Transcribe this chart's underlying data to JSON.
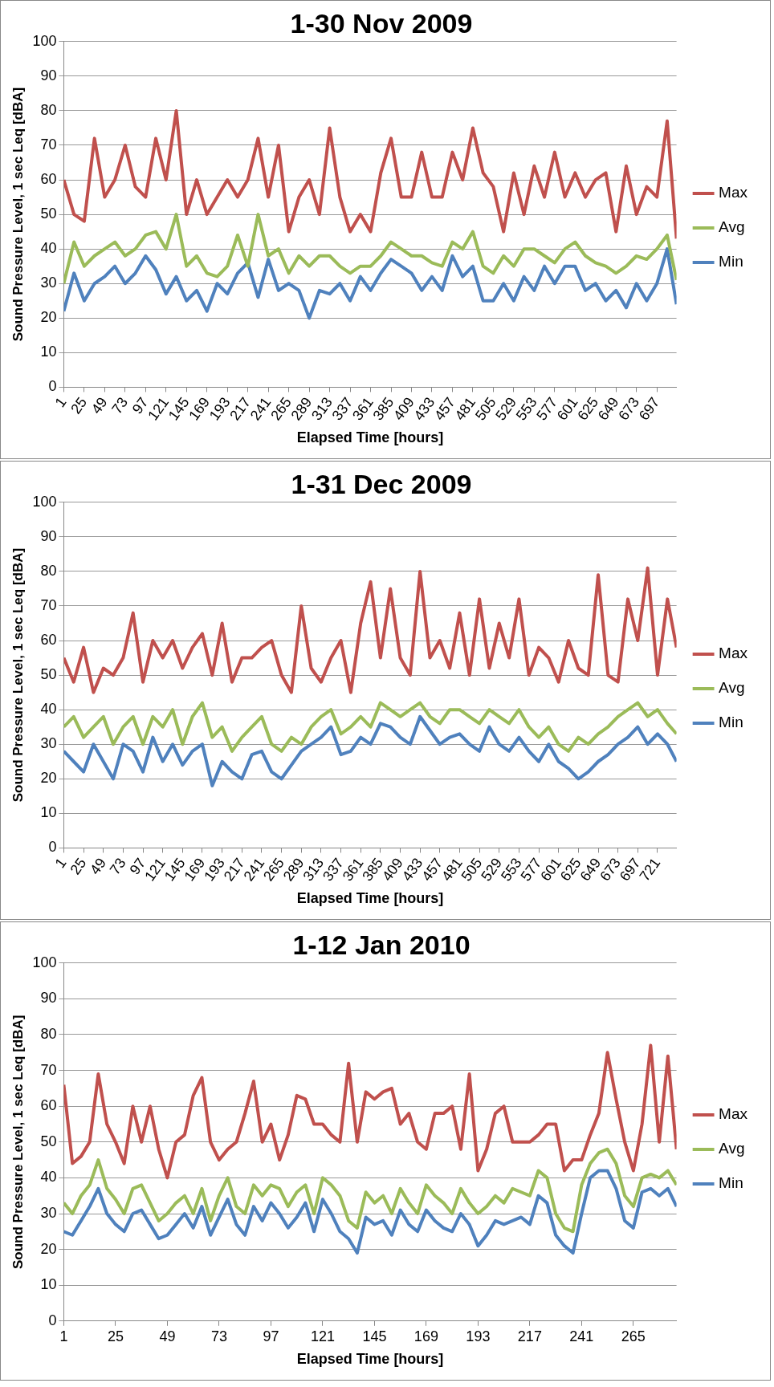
{
  "chart_data": [
    {
      "type": "line",
      "title": "1-30 Nov 2009",
      "xlabel": "Elapsed Time [hours]",
      "ylabel": "Sound Pressure Level, 1 sec Leq [dBA]",
      "xlim": [
        1,
        720
      ],
      "xticks": [
        1,
        25,
        49,
        73,
        97,
        121,
        145,
        169,
        193,
        217,
        241,
        265,
        289,
        313,
        337,
        361,
        385,
        409,
        433,
        457,
        481,
        505,
        529,
        553,
        577,
        601,
        625,
        649,
        673,
        697
      ],
      "ylim": [
        0,
        100
      ],
      "yticks": [
        0,
        10,
        20,
        30,
        40,
        50,
        60,
        70,
        80,
        90,
        100
      ],
      "grid": "y",
      "legend": "right",
      "marker": "none",
      "x": [
        1,
        13,
        25,
        37,
        49,
        61,
        73,
        85,
        97,
        109,
        121,
        133,
        145,
        157,
        169,
        181,
        193,
        205,
        217,
        229,
        241,
        253,
        265,
        277,
        289,
        301,
        313,
        325,
        337,
        349,
        361,
        373,
        385,
        397,
        409,
        421,
        433,
        445,
        457,
        469,
        481,
        493,
        505,
        517,
        529,
        541,
        553,
        565,
        577,
        589,
        601,
        613,
        625,
        637,
        649,
        661,
        673,
        685,
        697,
        709,
        720
      ],
      "series": [
        {
          "name": "Max",
          "color": "#c0504d",
          "values": [
            60,
            50,
            48,
            72,
            55,
            60,
            70,
            58,
            55,
            72,
            60,
            80,
            50,
            60,
            50,
            55,
            60,
            55,
            60,
            72,
            55,
            70,
            45,
            55,
            60,
            50,
            75,
            55,
            45,
            50,
            45,
            62,
            72,
            55,
            55,
            68,
            55,
            55,
            68,
            60,
            75,
            62,
            58,
            45,
            62,
            50,
            64,
            55,
            68,
            55,
            62,
            55,
            60,
            62,
            45,
            64,
            50,
            58,
            55,
            77,
            43
          ]
        },
        {
          "name": "Avg",
          "color": "#9bbb59",
          "values": [
            30,
            42,
            35,
            38,
            40,
            42,
            38,
            40,
            44,
            45,
            40,
            50,
            35,
            38,
            33,
            32,
            35,
            44,
            35,
            50,
            38,
            40,
            33,
            38,
            35,
            38,
            38,
            35,
            33,
            35,
            35,
            38,
            42,
            40,
            38,
            38,
            36,
            35,
            42,
            40,
            45,
            35,
            33,
            38,
            35,
            40,
            40,
            38,
            36,
            40,
            42,
            38,
            36,
            35,
            33,
            35,
            38,
            37,
            40,
            44,
            31
          ]
        },
        {
          "name": "Min",
          "color": "#4f81bd",
          "values": [
            22,
            33,
            25,
            30,
            32,
            35,
            30,
            33,
            38,
            34,
            27,
            32,
            25,
            28,
            22,
            30,
            27,
            33,
            36,
            26,
            37,
            28,
            30,
            28,
            20,
            28,
            27,
            30,
            25,
            32,
            28,
            33,
            37,
            35,
            33,
            28,
            32,
            28,
            38,
            32,
            35,
            25,
            25,
            30,
            25,
            32,
            28,
            35,
            30,
            35,
            35,
            28,
            30,
            25,
            28,
            23,
            30,
            25,
            30,
            40,
            24
          ]
        }
      ]
    },
    {
      "type": "line",
      "title": "1-31 Dec 2009",
      "xlabel": "Elapsed Time [hours]",
      "ylabel": "Sound Pressure Level, 1 sec Leq [dBA]",
      "xlim": [
        1,
        744
      ],
      "xticks": [
        1,
        25,
        49,
        73,
        97,
        121,
        145,
        169,
        193,
        217,
        241,
        265,
        289,
        313,
        337,
        361,
        385,
        409,
        433,
        457,
        481,
        505,
        529,
        553,
        577,
        601,
        625,
        649,
        673,
        697,
        721
      ],
      "ylim": [
        0,
        100
      ],
      "yticks": [
        0,
        10,
        20,
        30,
        40,
        50,
        60,
        70,
        80,
        90,
        100
      ],
      "grid": "y",
      "legend": "right",
      "marker": "none",
      "x": [
        1,
        13,
        25,
        37,
        49,
        61,
        73,
        85,
        97,
        109,
        121,
        133,
        145,
        157,
        169,
        181,
        193,
        205,
        217,
        229,
        241,
        253,
        265,
        277,
        289,
        301,
        313,
        325,
        337,
        349,
        361,
        373,
        385,
        397,
        409,
        421,
        433,
        445,
        457,
        469,
        481,
        493,
        505,
        517,
        529,
        541,
        553,
        565,
        577,
        589,
        601,
        613,
        625,
        637,
        649,
        661,
        673,
        685,
        697,
        709,
        721,
        733,
        744
      ],
      "series": [
        {
          "name": "Max",
          "color": "#c0504d",
          "values": [
            55,
            48,
            58,
            45,
            52,
            50,
            55,
            68,
            48,
            60,
            55,
            60,
            52,
            58,
            62,
            50,
            65,
            48,
            55,
            55,
            58,
            60,
            50,
            45,
            70,
            52,
            48,
            55,
            60,
            45,
            65,
            77,
            55,
            75,
            55,
            50,
            80,
            55,
            60,
            52,
            68,
            50,
            72,
            52,
            65,
            55,
            72,
            50,
            58,
            55,
            48,
            60,
            52,
            50,
            79,
            50,
            48,
            72,
            60,
            81,
            50,
            72,
            58
          ]
        },
        {
          "name": "Avg",
          "color": "#9bbb59",
          "values": [
            35,
            38,
            32,
            35,
            38,
            30,
            35,
            38,
            30,
            38,
            35,
            40,
            30,
            38,
            42,
            32,
            35,
            28,
            32,
            35,
            38,
            30,
            28,
            32,
            30,
            35,
            38,
            40,
            33,
            35,
            38,
            35,
            42,
            40,
            38,
            40,
            42,
            38,
            36,
            40,
            40,
            38,
            36,
            40,
            38,
            36,
            40,
            35,
            32,
            35,
            30,
            28,
            32,
            30,
            33,
            35,
            38,
            40,
            42,
            38,
            40,
            36,
            33
          ]
        },
        {
          "name": "Min",
          "color": "#4f81bd",
          "values": [
            28,
            25,
            22,
            30,
            25,
            20,
            30,
            28,
            22,
            32,
            25,
            30,
            24,
            28,
            30,
            18,
            25,
            22,
            20,
            27,
            28,
            22,
            20,
            24,
            28,
            30,
            32,
            35,
            27,
            28,
            32,
            30,
            36,
            35,
            32,
            30,
            38,
            34,
            30,
            32,
            33,
            30,
            28,
            35,
            30,
            28,
            32,
            28,
            25,
            30,
            25,
            23,
            20,
            22,
            25,
            27,
            30,
            32,
            35,
            30,
            33,
            30,
            25
          ]
        }
      ]
    },
    {
      "type": "line",
      "title": "1-12 Jan 2010",
      "xlabel": "Elapsed Time [hours]",
      "ylabel": "Sound Pressure Level, 1 sec Leq [dBA]",
      "xlim": [
        1,
        285
      ],
      "xticks": [
        1,
        25,
        49,
        73,
        97,
        121,
        145,
        169,
        193,
        217,
        241,
        265
      ],
      "ylim": [
        0,
        100
      ],
      "yticks": [
        0,
        10,
        20,
        30,
        40,
        50,
        60,
        70,
        80,
        90,
        100
      ],
      "grid": "y",
      "legend": "right",
      "marker": "none",
      "x": [
        1,
        5,
        9,
        13,
        17,
        21,
        25,
        29,
        33,
        37,
        41,
        45,
        49,
        53,
        57,
        61,
        65,
        69,
        73,
        77,
        81,
        85,
        89,
        93,
        97,
        101,
        105,
        109,
        113,
        117,
        121,
        125,
        129,
        133,
        137,
        141,
        145,
        149,
        153,
        157,
        161,
        165,
        169,
        173,
        177,
        181,
        185,
        189,
        193,
        197,
        201,
        205,
        209,
        213,
        217,
        221,
        225,
        229,
        233,
        237,
        241,
        245,
        249,
        253,
        257,
        261,
        265,
        269,
        273,
        277,
        281,
        285
      ],
      "series": [
        {
          "name": "Max",
          "color": "#c0504d",
          "values": [
            66,
            44,
            46,
            50,
            69,
            55,
            50,
            44,
            60,
            50,
            60,
            48,
            40,
            50,
            52,
            63,
            68,
            50,
            45,
            48,
            50,
            58,
            67,
            50,
            55,
            45,
            52,
            63,
            62,
            55,
            55,
            52,
            50,
            72,
            50,
            64,
            62,
            64,
            65,
            55,
            58,
            50,
            48,
            58,
            58,
            60,
            48,
            69,
            42,
            48,
            58,
            60,
            50,
            50,
            50,
            52,
            55,
            55,
            42,
            45,
            45,
            52,
            58,
            75,
            62,
            50,
            42,
            55,
            77,
            50,
            74,
            48
          ]
        },
        {
          "name": "Avg",
          "color": "#9bbb59",
          "values": [
            33,
            30,
            35,
            38,
            45,
            37,
            34,
            30,
            37,
            38,
            33,
            28,
            30,
            33,
            35,
            30,
            37,
            28,
            35,
            40,
            32,
            30,
            38,
            35,
            38,
            37,
            32,
            36,
            38,
            30,
            40,
            38,
            35,
            28,
            26,
            36,
            33,
            35,
            30,
            37,
            33,
            30,
            38,
            35,
            33,
            30,
            37,
            33,
            30,
            32,
            35,
            33,
            37,
            36,
            35,
            42,
            40,
            30,
            26,
            25,
            38,
            44,
            47,
            48,
            44,
            35,
            32,
            40,
            41,
            40,
            42,
            38
          ]
        },
        {
          "name": "Min",
          "color": "#4f81bd",
          "values": [
            25,
            24,
            28,
            32,
            37,
            30,
            27,
            25,
            30,
            31,
            27,
            23,
            24,
            27,
            30,
            26,
            32,
            24,
            29,
            34,
            27,
            24,
            32,
            28,
            33,
            30,
            26,
            29,
            33,
            25,
            34,
            30,
            25,
            23,
            19,
            29,
            27,
            28,
            24,
            31,
            27,
            25,
            31,
            28,
            26,
            25,
            30,
            27,
            21,
            24,
            28,
            27,
            28,
            29,
            27,
            35,
            33,
            24,
            21,
            19,
            30,
            40,
            42,
            42,
            37,
            28,
            26,
            36,
            37,
            35,
            37,
            32
          ]
        }
      ]
    }
  ]
}
